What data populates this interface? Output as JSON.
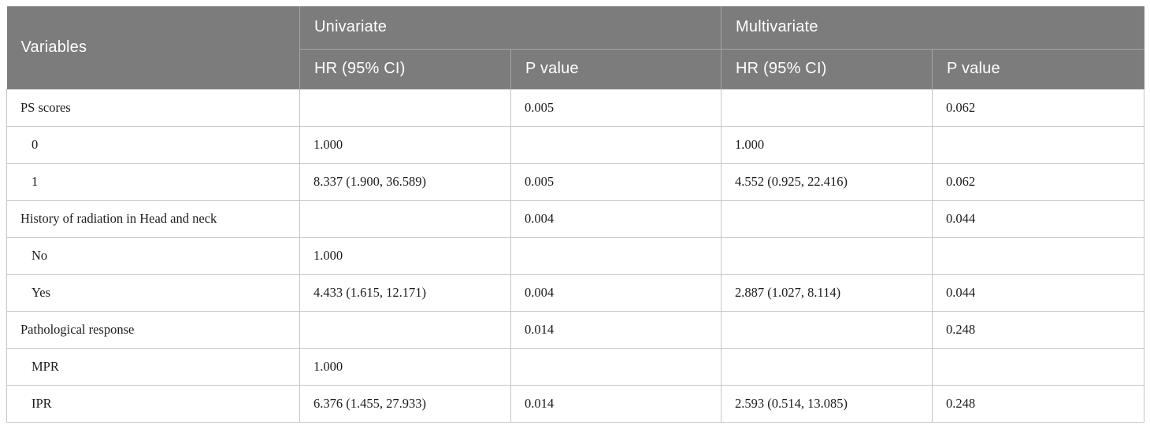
{
  "table": {
    "header": {
      "variables": "Variables",
      "univariate": "Univariate",
      "multivariate": "Multivariate",
      "uni_hr_label": "HR (95% CI)",
      "uni_p_label": "P value",
      "multi_hr_label": "HR (95% CI)",
      "multi_p_label": "P value"
    },
    "rows": [
      {
        "variable": "PS scores",
        "indent": false,
        "uni_hr": "",
        "uni_p": "0.005",
        "multi_hr": "",
        "multi_p": "0.062"
      },
      {
        "variable": "0",
        "indent": true,
        "uni_hr": "1.000",
        "uni_p": "",
        "multi_hr": "1.000",
        "multi_p": ""
      },
      {
        "variable": "1",
        "indent": true,
        "uni_hr": "8.337 (1.900, 36.589)",
        "uni_p": "0.005",
        "multi_hr": "4.552 (0.925, 22.416)",
        "multi_p": "0.062"
      },
      {
        "variable": "History of radiation in Head and neck",
        "indent": false,
        "uni_hr": "",
        "uni_p": "0.004",
        "multi_hr": "",
        "multi_p": "0.044"
      },
      {
        "variable": "No",
        "indent": true,
        "uni_hr": "1.000",
        "uni_p": "",
        "multi_hr": "",
        "multi_p": ""
      },
      {
        "variable": "Yes",
        "indent": true,
        "uni_hr": "4.433 (1.615, 12.171)",
        "uni_p": "0.004",
        "multi_hr": "2.887 (1.027, 8.114)",
        "multi_p": "0.044"
      },
      {
        "variable": "Pathological response",
        "indent": false,
        "uni_hr": "",
        "uni_p": "0.014",
        "multi_hr": "",
        "multi_p": "0.248"
      },
      {
        "variable": "MPR",
        "indent": true,
        "uni_hr": "1.000",
        "uni_p": "",
        "multi_hr": "",
        "multi_p": ""
      },
      {
        "variable": "IPR",
        "indent": true,
        "uni_hr": "6.376 (1.455, 27.933)",
        "uni_p": "0.014",
        "multi_hr": "2.593 (0.514, 13.085)",
        "multi_p": "0.248"
      }
    ],
    "colors": {
      "header_bg": "#7c7c7c",
      "header_text": "#ffffff",
      "header_divider": "#a5a5a5",
      "body_border": "#c6c6c6",
      "body_text": "#1c1c1c"
    }
  }
}
